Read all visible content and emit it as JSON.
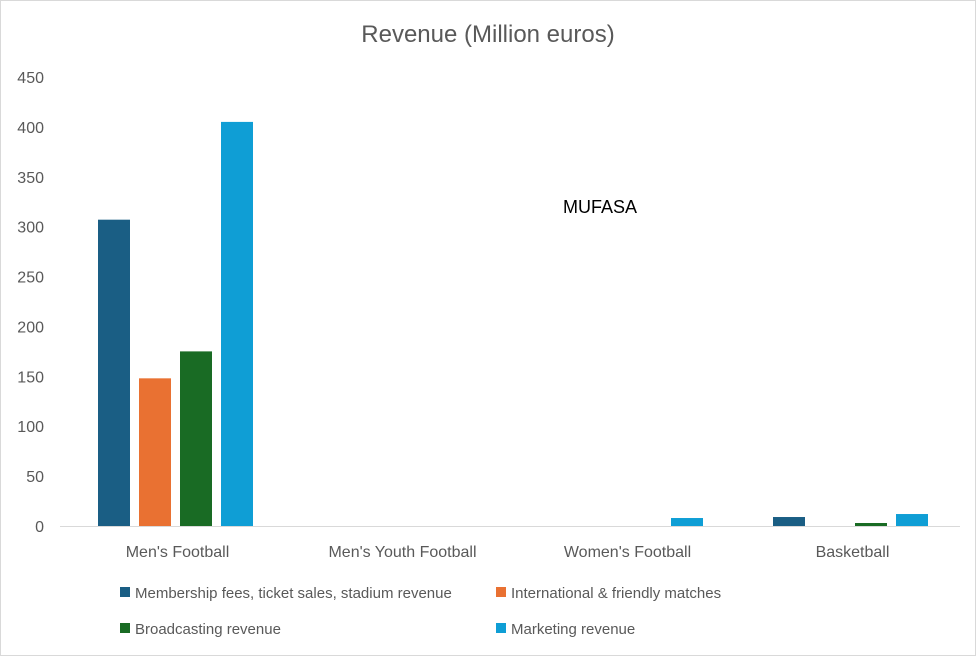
{
  "chart_data": {
    "type": "bar",
    "title": "Revenue (Million euros)",
    "categories": [
      "Men's Football",
      "Men's Youth Football",
      "Women's Football",
      "Basketball"
    ],
    "ylim": [
      0,
      450
    ],
    "yticks": [
      "0",
      "50",
      "100",
      "150",
      "200",
      "250",
      "300",
      "350",
      "400",
      "450"
    ],
    "grid": false,
    "legend_position": "bottom",
    "annotation": "MUFASA",
    "series": [
      {
        "name": "Membership fees, ticket sales, stadium revenue",
        "color": "#1a5e84",
        "values": [
          307,
          0,
          0,
          9
        ]
      },
      {
        "name": "International & friendly matches",
        "color": "#e97132",
        "values": [
          148,
          0,
          0,
          0
        ]
      },
      {
        "name": "Broadcasting revenue",
        "color": "#196b24",
        "values": [
          175,
          0,
          0,
          3
        ]
      },
      {
        "name": "Marketing revenue",
        "color": "#0f9ed5",
        "values": [
          405,
          0,
          8,
          12
        ]
      }
    ]
  }
}
